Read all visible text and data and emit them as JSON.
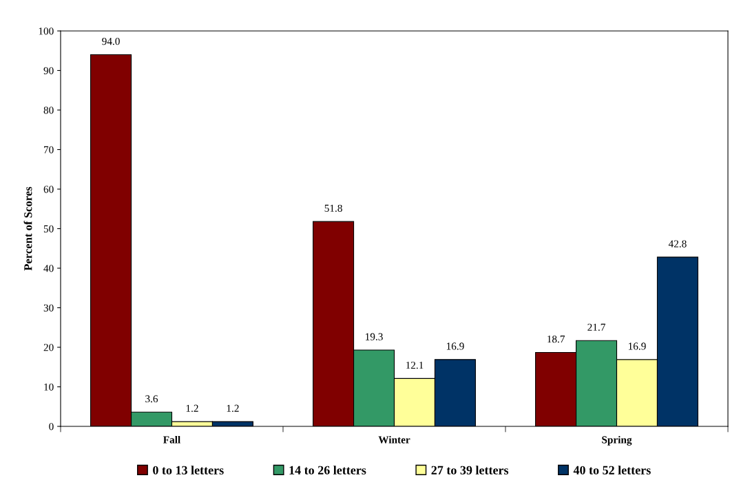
{
  "chart_data": {
    "type": "bar",
    "ylabel": "Percent of Scores",
    "categories": [
      "Fall",
      "Winter",
      "Spring"
    ],
    "series": [
      {
        "name": "0 to 13 letters",
        "color": "#800000",
        "values": [
          94.0,
          51.8,
          18.7
        ],
        "value_labels": [
          "94.0",
          "51.8",
          "18.7"
        ]
      },
      {
        "name": "14 to 26 letters",
        "color": "#339966",
        "values": [
          3.6,
          19.3,
          21.7
        ],
        "value_labels": [
          "3.6",
          "19.3",
          "21.7"
        ]
      },
      {
        "name": "27 to 39 letters",
        "color": "#ffff99",
        "values": [
          1.2,
          12.1,
          16.9
        ],
        "value_labels": [
          "1.2",
          "12.1",
          "16.9"
        ]
      },
      {
        "name": "40 to 52 letters",
        "color": "#003366",
        "values": [
          1.2,
          16.9,
          42.8
        ],
        "value_labels": [
          "1.2",
          "16.9",
          "42.8"
        ]
      }
    ],
    "ylim": [
      0,
      100
    ],
    "yticks": [
      0,
      10,
      20,
      30,
      40,
      50,
      60,
      70,
      80,
      90,
      100
    ],
    "grid": false,
    "legend": "bottom"
  }
}
